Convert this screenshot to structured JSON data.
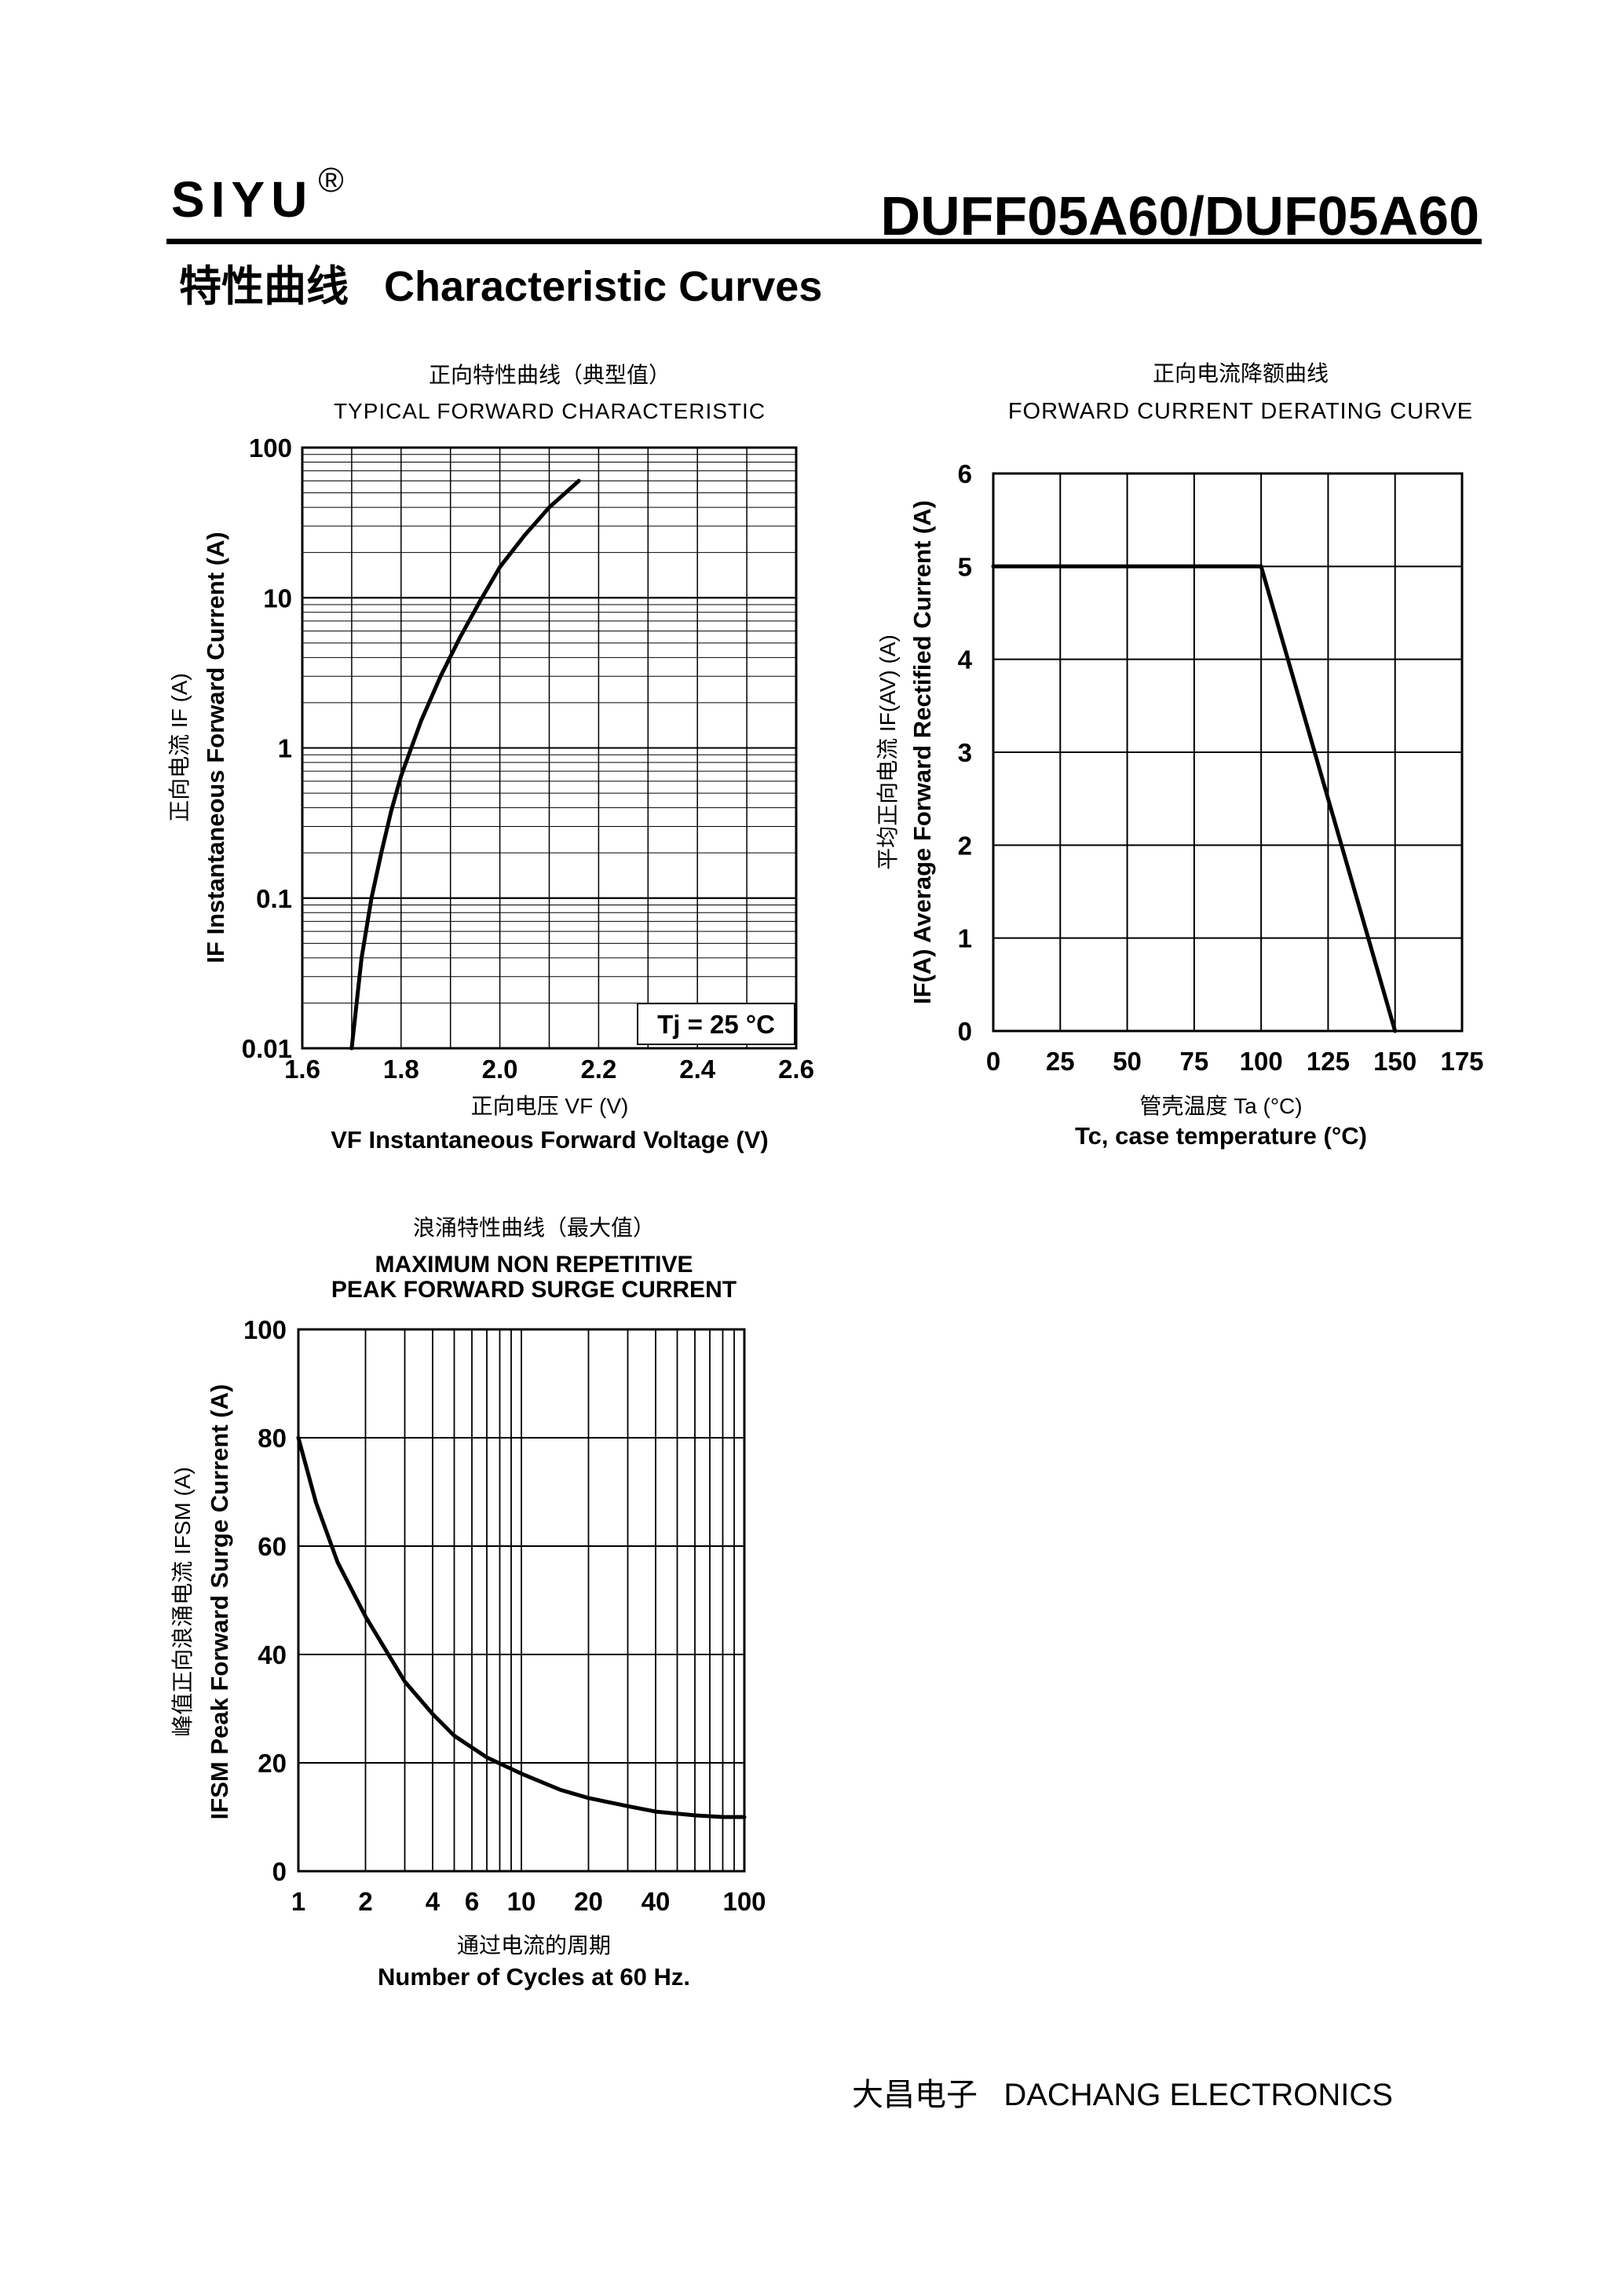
{
  "header": {
    "brand": "SIYU",
    "brand_mark": "®",
    "part_number": "DUFF05A60/DUF05A60",
    "section_title": "特性曲线   Characteristic Curves"
  },
  "footer": {
    "company": "大昌电子   DACHANG ELECTRONICS"
  },
  "chart_data": [
    {
      "id": "forward",
      "type": "line",
      "title_cn": "正向特性曲线（典型值）",
      "title": "TYPICAL FORWARD CHARACTERISTIC",
      "xlabel_cn": "正向电压    VF (V)",
      "xlabel": "VF  Instantaneous Forward Voltage (V)",
      "ylabel_cn": "正向电流    IF (A)",
      "ylabel": "IF Instantaneous Forward Current (A)",
      "xlim": [
        1.6,
        2.6
      ],
      "ylim": [
        0.01,
        100
      ],
      "yscale": "log",
      "xticks": [
        "1.6",
        "1.8",
        "2.0",
        "2.2",
        "2.4",
        "2.6"
      ],
      "yticks": [
        "0.01",
        "0.1",
        "1",
        "10",
        "100"
      ],
      "grid": true,
      "annotation": "Tj = 25 °C",
      "series": [
        {
          "x": [
            1.7,
            1.71,
            1.72,
            1.74,
            1.76,
            1.78,
            1.8,
            1.84,
            1.88,
            1.92,
            1.96,
            2.0,
            2.05,
            2.1,
            2.16
          ],
          "y": [
            0.01,
            0.02,
            0.04,
            0.1,
            0.2,
            0.38,
            0.65,
            1.5,
            3.0,
            5.5,
            9.5,
            16,
            26,
            40,
            60
          ]
        }
      ]
    },
    {
      "id": "derating",
      "type": "line",
      "title_cn": "正向电流降额曲线",
      "title": "FORWARD CURRENT DERATING CURVE",
      "xlabel_cn": "管壳温度 Ta (°C)",
      "xlabel": "Tc, case  temperature (°C)",
      "ylabel_cn": "平均正向电流    IF(AV)   (A)",
      "ylabel": "IF(A)  Average Forward Rectified Current (A)",
      "xlim": [
        0,
        175
      ],
      "ylim": [
        0,
        6
      ],
      "xticks": [
        "0",
        "25",
        "50",
        "75",
        "100",
        "125",
        "150",
        "175"
      ],
      "yticks": [
        "0",
        "1",
        "2",
        "3",
        "4",
        "5",
        "6"
      ],
      "grid": true,
      "series": [
        {
          "x": [
            0,
            100,
            150
          ],
          "y": [
            5,
            5,
            0
          ]
        }
      ]
    },
    {
      "id": "surge",
      "type": "line",
      "title_cn": "浪涌特性曲线（最大值）",
      "title": "MAXIMUM NON REPETITIVE PEAK FORWARD SURGE CURRENT",
      "xlabel_cn": "通过电流的周期",
      "xlabel": "Number  of  Cycles at 60 Hz.",
      "ylabel_cn": "峰值正向浪涌电流    IFSM (A)",
      "ylabel": "IFSM  Peak Forward Surge Current (A)",
      "xlim": [
        1,
        100
      ],
      "xscale": "log",
      "ylim": [
        0,
        100
      ],
      "xticks": [
        "1",
        "2",
        "4",
        "6",
        "10",
        "20",
        "40",
        "100"
      ],
      "yticks": [
        "0",
        "20",
        "40",
        "60",
        "80",
        "100"
      ],
      "grid": true,
      "series": [
        {
          "x": [
            1,
            1.2,
            1.5,
            2,
            3,
            4,
            5,
            7,
            10,
            15,
            20,
            30,
            40,
            60,
            80,
            100
          ],
          "y": [
            80,
            68,
            57,
            47,
            35,
            29,
            25,
            21,
            18,
            15,
            13.5,
            12,
            11,
            10.3,
            10,
            10
          ]
        }
      ]
    }
  ]
}
